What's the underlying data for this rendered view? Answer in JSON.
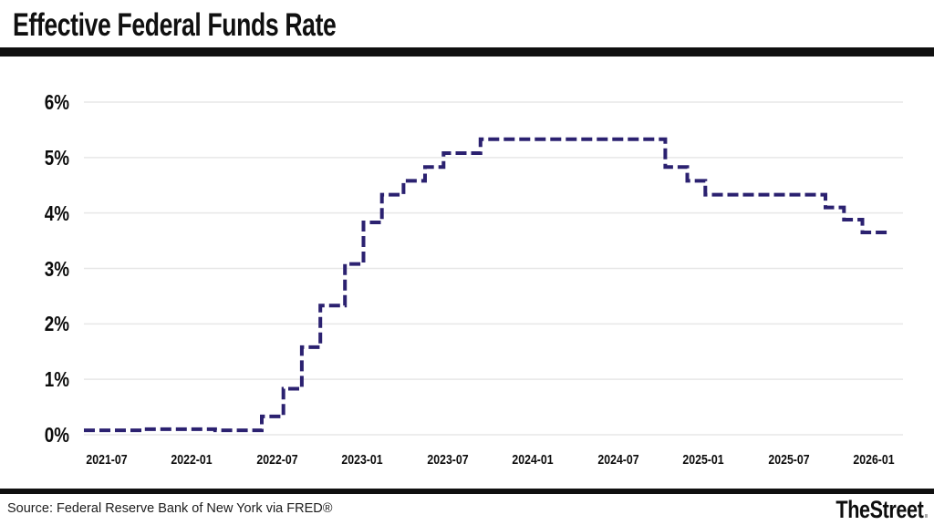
{
  "page": {
    "title": "Effective Federal Funds Rate",
    "footer": {
      "source": "Source: Federal Reserve Bank of New York via FRED®",
      "brand": "TheStreet",
      "brand_period": "."
    }
  },
  "chart_data": {
    "type": "line",
    "style": "step-after, dashed",
    "title": "Effective Federal Funds Rate",
    "xlabel": "",
    "ylabel": "",
    "legend": "none",
    "grid": "horizontal gridlines only",
    "ylim": [
      0,
      6
    ],
    "y_tick_labels": [
      "0%",
      "1%",
      "2%",
      "3%",
      "4%",
      "5%",
      "6%"
    ],
    "y_tick_values": [
      0,
      1,
      2,
      3,
      4,
      5,
      6
    ],
    "x_tick_labels": [
      "2021-07",
      "2022-01",
      "2022-07",
      "2023-01",
      "2023-07",
      "2024-01",
      "2024-07",
      "2025-01",
      "2025-07",
      "2026-01"
    ],
    "series": [
      {
        "name": "Effective Federal Funds Rate (%)",
        "points": [
          {
            "date": "2021-02-01",
            "value": 0.08
          },
          {
            "date": "2021-06-17",
            "value": 0.1
          },
          {
            "date": "2021-12-01",
            "value": 0.08
          },
          {
            "date": "2022-03-17",
            "value": 0.33
          },
          {
            "date": "2022-05-05",
            "value": 0.83
          },
          {
            "date": "2022-06-16",
            "value": 1.58
          },
          {
            "date": "2022-07-28",
            "value": 2.33
          },
          {
            "date": "2022-09-22",
            "value": 3.08
          },
          {
            "date": "2022-11-03",
            "value": 3.83
          },
          {
            "date": "2022-12-15",
            "value": 4.33
          },
          {
            "date": "2023-02-02",
            "value": 4.58
          },
          {
            "date": "2023-03-23",
            "value": 4.83
          },
          {
            "date": "2023-05-04",
            "value": 5.08
          },
          {
            "date": "2023-07-27",
            "value": 5.33
          },
          {
            "date": "2024-09-19",
            "value": 4.83
          },
          {
            "date": "2024-11-08",
            "value": 4.58
          },
          {
            "date": "2024-12-19",
            "value": 4.33
          },
          {
            "date": "2025-09-18",
            "value": 4.1
          },
          {
            "date": "2025-10-30",
            "value": 3.88
          },
          {
            "date": "2025-12-11",
            "value": 3.65
          }
        ],
        "end_date": "2026-02-13",
        "last_value": 3.65
      }
    ],
    "colors": {
      "line": "#2b2170",
      "grid": "#e7e7e7",
      "text": "#0c0c0c",
      "divider": "#101010"
    }
  }
}
